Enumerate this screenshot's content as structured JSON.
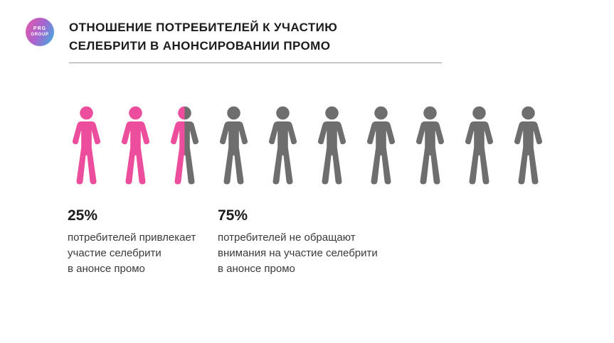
{
  "logo": {
    "line1": "PRG",
    "line2": "GROUP"
  },
  "header": {
    "title_line1": "ОТНОШЕНИЕ ПОТРЕБИТЕЛЕЙ К УЧАСТИЮ",
    "title_line2": "СЕЛЕБРИТИ В АНОНСИРОВАНИИ ПРОМО"
  },
  "chart_data": {
    "type": "pie",
    "style": "pictogram",
    "title": "Отношение потребителей к участию селебрити в анонсировании промо",
    "categories": [
      "потребителей привлекает участие селебрити в анонсе промо",
      "потребителей не обращают внимания на участие селебрити в анонсе промо"
    ],
    "values": [
      25,
      75
    ],
    "unit": "%",
    "icons_total": 10,
    "icons_highlighted": 2.5,
    "legend_position": "below",
    "colors": [
      "#ec4d9c",
      "#6e6e6e"
    ]
  },
  "figures": {
    "total": 10,
    "pink_full": 2,
    "half": 1,
    "gray_full": 7,
    "pink_color": "#ec4d9c",
    "gray_color": "#6e6e6e"
  },
  "stats": [
    {
      "value": "25%",
      "lines": [
        "потребителей привлекает",
        "участие селебрити",
        "в анонсе промо"
      ]
    },
    {
      "value": "75%",
      "lines": [
        "потребителей не обращают",
        "внимания на участие селебрити",
        "в анонсе промо"
      ]
    }
  ]
}
